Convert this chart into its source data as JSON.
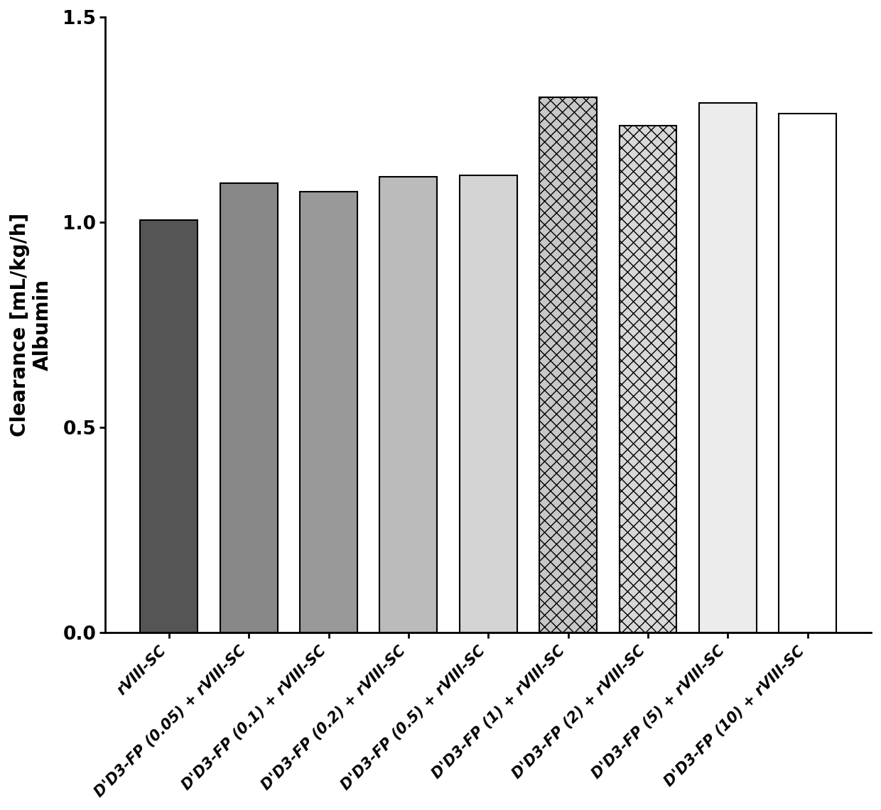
{
  "categories": [
    "rVIII-SC",
    "D'D3-FP (0.05) + rVIII-SC",
    "D'D3-FP (0.1) + rVIII-SC",
    "D'D3-FP (0.2) + rVIII-SC",
    "D'D3-FP (0.5) + rVIII-SC",
    "D'D3-FP (1) + rVIII-SC",
    "D'D3-FP (2) + rVIII-SC",
    "D'D3-FP (5) + rVIII-SC",
    "D'D3-FP (10) + rVIII-SC"
  ],
  "values": [
    1.005,
    1.095,
    1.075,
    1.11,
    1.115,
    1.305,
    1.235,
    1.29,
    1.265
  ],
  "ylabel_line1": "Clearance [mL/kg/h]",
  "ylabel_line2": "Albumin",
  "ylim": [
    0.0,
    1.5
  ],
  "yticks": [
    0.0,
    0.5,
    1.0,
    1.5
  ],
  "bar_edgecolor": "#000000",
  "background_color": "#ffffff"
}
